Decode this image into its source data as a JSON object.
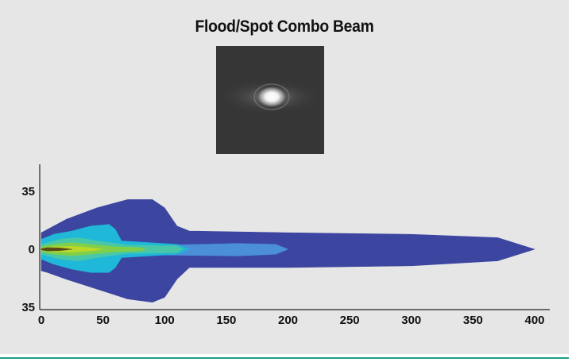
{
  "title": "Flood/Spot Combo Beam",
  "preview": {
    "label": ""
  },
  "chart_data": {
    "type": "area",
    "title": "Flood/Spot Combo Beam",
    "xlabel": "",
    "ylabel": "",
    "xlim": [
      0,
      400
    ],
    "ylim": [
      -35,
      35
    ],
    "x_ticks": [
      0,
      50,
      100,
      150,
      200,
      250,
      300,
      350,
      400
    ],
    "y_ticks": [
      {
        "value": 35,
        "label": "35"
      },
      {
        "value": 0,
        "label": "0"
      },
      {
        "value": -35,
        "label": "35"
      }
    ],
    "grid": false,
    "legend": "none",
    "series": [
      {
        "color": "#3c46a0",
        "upper": [
          [
            0,
            10
          ],
          [
            5,
            12
          ],
          [
            20,
            18
          ],
          [
            45,
            25
          ],
          [
            70,
            30
          ],
          [
            90,
            30
          ],
          [
            100,
            25
          ],
          [
            110,
            14
          ],
          [
            120,
            11
          ],
          [
            200,
            10
          ],
          [
            300,
            9
          ],
          [
            370,
            7
          ],
          [
            400,
            0
          ]
        ],
        "lower": [
          [
            0,
            -13
          ],
          [
            5,
            -14
          ],
          [
            20,
            -18
          ],
          [
            45,
            -24
          ],
          [
            70,
            -30
          ],
          [
            90,
            -32
          ],
          [
            100,
            -29
          ],
          [
            110,
            -18
          ],
          [
            120,
            -11
          ],
          [
            200,
            -11
          ],
          [
            300,
            -10
          ],
          [
            370,
            -7
          ],
          [
            400,
            0
          ]
        ]
      },
      {
        "color": "#4a8fd8",
        "upper": [
          [
            0,
            1
          ],
          [
            100,
            2.5
          ],
          [
            160,
            3.5
          ],
          [
            190,
            3
          ],
          [
            200,
            0
          ]
        ],
        "lower": [
          [
            0,
            -1
          ],
          [
            100,
            -3.5
          ],
          [
            160,
            -4
          ],
          [
            190,
            -3
          ],
          [
            200,
            0
          ]
        ]
      },
      {
        "color": "#1fb8d8",
        "upper": [
          [
            0,
            6
          ],
          [
            10,
            9
          ],
          [
            25,
            11
          ],
          [
            40,
            14
          ],
          [
            55,
            15
          ],
          [
            60,
            12
          ],
          [
            65,
            5
          ],
          [
            110,
            3
          ],
          [
            120,
            0
          ]
        ],
        "lower": [
          [
            0,
            -6
          ],
          [
            10,
            -9
          ],
          [
            25,
            -12
          ],
          [
            40,
            -14
          ],
          [
            55,
            -14
          ],
          [
            60,
            -11
          ],
          [
            65,
            -5
          ],
          [
            110,
            -3
          ],
          [
            120,
            0
          ]
        ]
      },
      {
        "color": "#48c8a8",
        "upper": [
          [
            0,
            3
          ],
          [
            15,
            6
          ],
          [
            30,
            7
          ],
          [
            45,
            5
          ],
          [
            70,
            2.5
          ],
          [
            110,
            2
          ],
          [
            115,
            0
          ]
        ],
        "lower": [
          [
            0,
            -3
          ],
          [
            15,
            -6
          ],
          [
            30,
            -7
          ],
          [
            45,
            -5
          ],
          [
            70,
            -2.5
          ],
          [
            110,
            -2
          ],
          [
            115,
            0
          ]
        ]
      },
      {
        "color": "#7fcf4a",
        "upper": [
          [
            0,
            1.5
          ],
          [
            10,
            3
          ],
          [
            25,
            4
          ],
          [
            40,
            3
          ],
          [
            60,
            1.5
          ],
          [
            80,
            1
          ],
          [
            85,
            0
          ]
        ],
        "lower": [
          [
            0,
            -1.5
          ],
          [
            10,
            -3
          ],
          [
            25,
            -4
          ],
          [
            40,
            -3
          ],
          [
            60,
            -1.5
          ],
          [
            80,
            -1
          ],
          [
            85,
            0
          ]
        ]
      },
      {
        "color": "#b8d82a",
        "upper": [
          [
            0,
            0.7
          ],
          [
            10,
            1.5
          ],
          [
            25,
            1.8
          ],
          [
            40,
            1
          ],
          [
            50,
            0
          ]
        ],
        "lower": [
          [
            0,
            -0.7
          ],
          [
            10,
            -1.5
          ],
          [
            25,
            -1.8
          ],
          [
            40,
            -1
          ],
          [
            50,
            0
          ]
        ]
      },
      {
        "color": "#5a4a18",
        "upper": [
          [
            0,
            0.4
          ],
          [
            5,
            1
          ],
          [
            15,
            0.8
          ],
          [
            25,
            0
          ]
        ],
        "lower": [
          [
            0,
            -0.4
          ],
          [
            5,
            -1
          ],
          [
            15,
            -0.8
          ],
          [
            25,
            0
          ]
        ]
      }
    ]
  }
}
